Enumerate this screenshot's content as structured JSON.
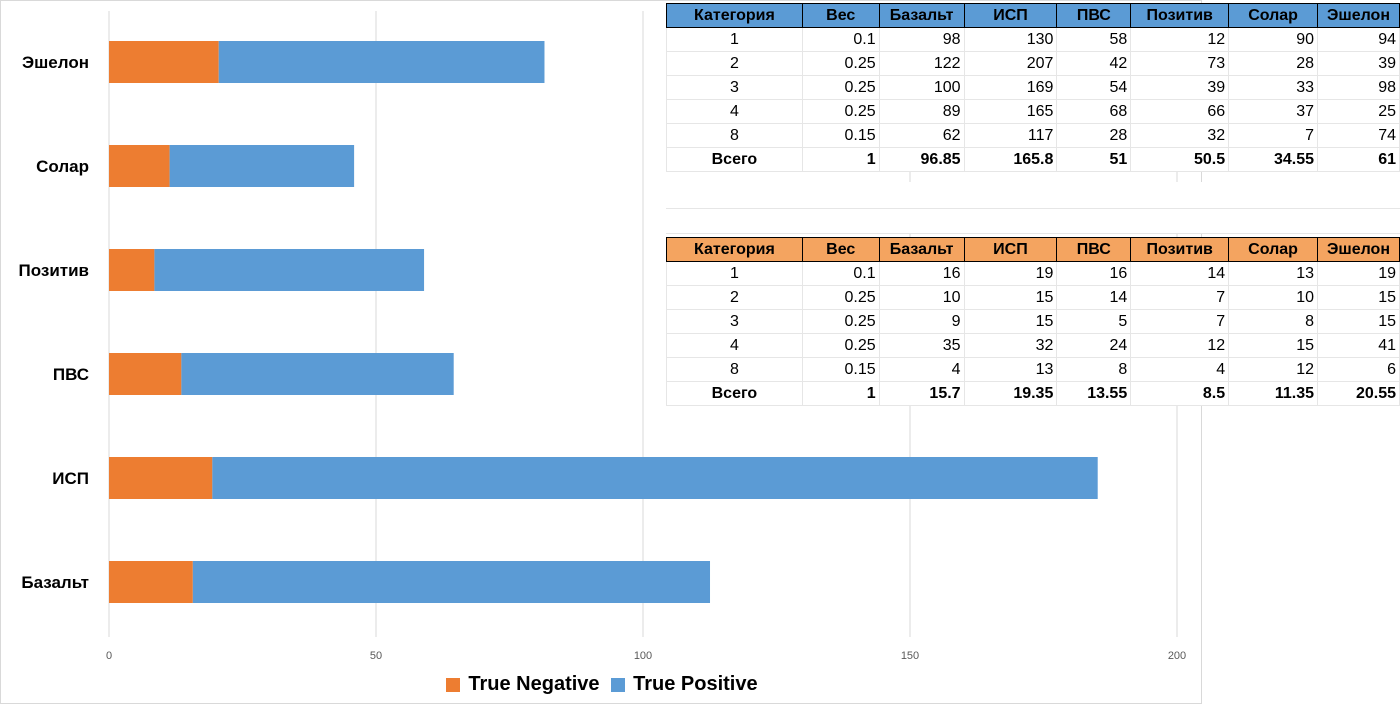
{
  "colors": {
    "tn": "#ed7d31",
    "tp": "#5b9bd5",
    "grid": "#d9d9d9",
    "tp_header": "#5b9bd5",
    "tn_header": "#f4a460"
  },
  "chart_data": {
    "type": "bar",
    "orientation": "horizontal",
    "stacked": true,
    "categories": [
      "Эшелон",
      "Солар",
      "Позитив",
      "ПВС",
      "ИСП",
      "Базальт"
    ],
    "series": [
      {
        "name": "True Negative",
        "values": [
          20.55,
          11.35,
          8.5,
          13.55,
          19.35,
          15.7
        ]
      },
      {
        "name": "True Positive",
        "values": [
          61,
          34.55,
          50.5,
          51,
          165.8,
          96.85
        ]
      }
    ],
    "xlim": [
      0,
      200
    ],
    "xticks": [
      "0",
      "50",
      "100",
      "150",
      "200"
    ],
    "grid": true,
    "legend": "bottom"
  },
  "tables": {
    "headers": [
      "Категория",
      "Вес",
      "Базальт",
      "ИСП",
      "ПВС",
      "Позитив",
      "Солар",
      "Эшелон"
    ],
    "true_positive": {
      "rows": [
        [
          "1",
          "0.1",
          "98",
          "130",
          "58",
          "12",
          "90",
          "94"
        ],
        [
          "2",
          "0.25",
          "122",
          "207",
          "42",
          "73",
          "28",
          "39"
        ],
        [
          "3",
          "0.25",
          "100",
          "169",
          "54",
          "39",
          "33",
          "98"
        ],
        [
          "4",
          "0.25",
          "89",
          "165",
          "68",
          "66",
          "37",
          "25"
        ],
        [
          "8",
          "0.15",
          "62",
          "117",
          "28",
          "32",
          "7",
          "74"
        ]
      ],
      "total": [
        "Всего",
        "1",
        "96.85",
        "165.8",
        "51",
        "50.5",
        "34.55",
        "61"
      ]
    },
    "true_negative": {
      "rows": [
        [
          "1",
          "0.1",
          "16",
          "19",
          "16",
          "14",
          "13",
          "19"
        ],
        [
          "2",
          "0.25",
          "10",
          "15",
          "14",
          "7",
          "10",
          "15"
        ],
        [
          "3",
          "0.25",
          "9",
          "15",
          "5",
          "7",
          "8",
          "15"
        ],
        [
          "4",
          "0.25",
          "35",
          "32",
          "24",
          "12",
          "15",
          "41"
        ],
        [
          "8",
          "0.15",
          "4",
          "13",
          "8",
          "4",
          "12",
          "6"
        ]
      ],
      "total": [
        "Всего",
        "1",
        "15.7",
        "19.35",
        "13.55",
        "8.5",
        "11.35",
        "20.55"
      ]
    }
  }
}
